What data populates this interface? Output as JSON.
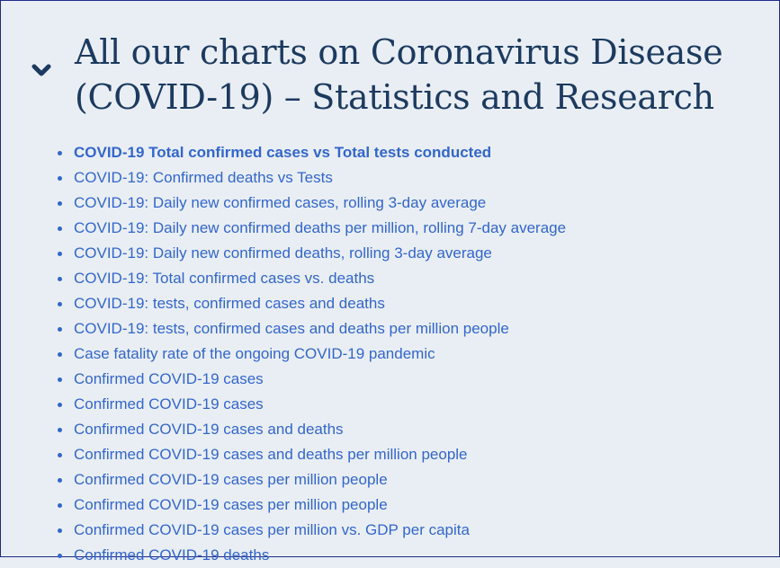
{
  "section": {
    "toggle_icon": "chevron-down-icon",
    "title": "All our charts on Coronavirus Disease (COVID-19) – Statistics and Research",
    "accent_color": "#1c3a5f",
    "link_color": "#3366cc"
  },
  "charts": [
    {
      "label": "COVID-19 Total confirmed cases vs Total tests conducted",
      "active": true
    },
    {
      "label": "COVID-19: Confirmed deaths vs Tests"
    },
    {
      "label": "COVID-19: Daily new confirmed cases, rolling 3-day average"
    },
    {
      "label": "COVID-19: Daily new confirmed deaths per million, rolling 7-day average"
    },
    {
      "label": "COVID-19: Daily new confirmed deaths, rolling 3-day average"
    },
    {
      "label": "COVID-19: Total confirmed cases vs. deaths"
    },
    {
      "label": "COVID-19: tests, confirmed cases and deaths"
    },
    {
      "label": "COVID-19: tests, confirmed cases and deaths per million people"
    },
    {
      "label": "Case fatality rate of the ongoing COVID-19 pandemic"
    },
    {
      "label": "Confirmed COVID-19 cases"
    },
    {
      "label": "Confirmed COVID-19 cases"
    },
    {
      "label": "Confirmed COVID-19 cases and deaths"
    },
    {
      "label": "Confirmed COVID-19 cases and deaths per million people"
    },
    {
      "label": "Confirmed COVID-19 cases per million people"
    },
    {
      "label": "Confirmed COVID-19 cases per million people"
    },
    {
      "label": "Confirmed COVID-19 cases per million vs. GDP per capita"
    },
    {
      "label": "Confirmed COVID-19 deaths"
    }
  ]
}
